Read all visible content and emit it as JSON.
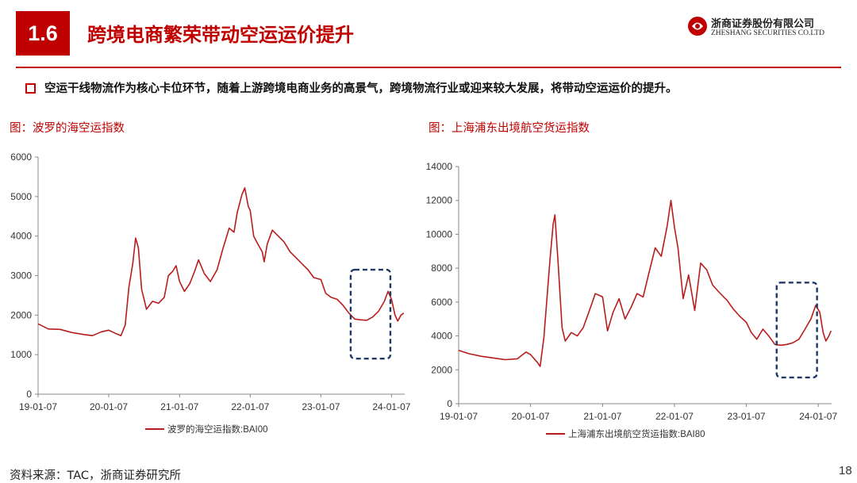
{
  "header": {
    "section_number": "1.6",
    "title": "跨境电商繁荣带动空运运价提升",
    "logo_cn": "浙商证券股份有限公司",
    "logo_en": "ZHESHANG SECURITIES CO.LTD"
  },
  "bullet": "空运干线物流作为核心卡位环节，随着上游跨境电商业务的高景气，跨境物流行业或迎来较大发展，将带动空运运价的提升。",
  "footer": {
    "source": "资料来源：TAC，浙商证券研究所",
    "page": "18"
  },
  "colors": {
    "accent": "#c00000",
    "line": "#b81c1c",
    "highlight_box": "#1f3864"
  },
  "chart_data": [
    {
      "type": "line",
      "title": "图：波罗的海空运指数",
      "legend": "波罗的海空运指数:BAI00",
      "legend_position": "bottom",
      "ylim": [
        0,
        6000
      ],
      "yticks": [
        0,
        1000,
        2000,
        3000,
        4000,
        5000,
        6000
      ],
      "xlim": [
        "2019-01-07",
        "2024-03-15"
      ],
      "xtick_labels": [
        "19-01-07",
        "20-01-07",
        "21-01-07",
        "22-01-07",
        "23-01-07",
        "24-01-07"
      ],
      "grid": false,
      "highlight_range": {
        "x": [
          "2023-06-10",
          "2024-01-01"
        ],
        "y": [
          900,
          3150
        ]
      },
      "points": [
        [
          "2019-01-07",
          1780
        ],
        [
          "2019-03-01",
          1650
        ],
        [
          "2019-05-01",
          1640
        ],
        [
          "2019-07-01",
          1560
        ],
        [
          "2019-09-01",
          1510
        ],
        [
          "2019-10-15",
          1480
        ],
        [
          "2019-12-01",
          1580
        ],
        [
          "2020-01-07",
          1620
        ],
        [
          "2020-02-15",
          1530
        ],
        [
          "2020-03-10",
          1480
        ],
        [
          "2020-04-01",
          1750
        ],
        [
          "2020-04-20",
          2700
        ],
        [
          "2020-05-10",
          3300
        ],
        [
          "2020-05-25",
          3950
        ],
        [
          "2020-06-08",
          3700
        ],
        [
          "2020-06-25",
          2650
        ],
        [
          "2020-07-20",
          2150
        ],
        [
          "2020-08-20",
          2350
        ],
        [
          "2020-09-20",
          2300
        ],
        [
          "2020-10-20",
          2450
        ],
        [
          "2020-11-10",
          3000
        ],
        [
          "2020-12-01",
          3100
        ],
        [
          "2020-12-20",
          3250
        ],
        [
          "2021-01-07",
          2850
        ],
        [
          "2021-02-01",
          2600
        ],
        [
          "2021-03-01",
          2800
        ],
        [
          "2021-03-25",
          3100
        ],
        [
          "2021-04-15",
          3400
        ],
        [
          "2021-05-15",
          3050
        ],
        [
          "2021-06-15",
          2850
        ],
        [
          "2021-07-20",
          3150
        ],
        [
          "2021-08-20",
          3700
        ],
        [
          "2021-09-20",
          4200
        ],
        [
          "2021-10-15",
          4100
        ],
        [
          "2021-11-01",
          4600
        ],
        [
          "2021-11-25",
          5050
        ],
        [
          "2021-12-10",
          5220
        ],
        [
          "2021-12-28",
          4750
        ],
        [
          "2022-01-07",
          4650
        ],
        [
          "2022-01-25",
          4000
        ],
        [
          "2022-02-15",
          3800
        ],
        [
          "2022-03-10",
          3600
        ],
        [
          "2022-03-20",
          3350
        ],
        [
          "2022-04-05",
          3800
        ],
        [
          "2022-05-01",
          4150
        ],
        [
          "2022-06-01",
          4000
        ],
        [
          "2022-07-01",
          3850
        ],
        [
          "2022-08-01",
          3600
        ],
        [
          "2022-09-01",
          3450
        ],
        [
          "2022-10-01",
          3300
        ],
        [
          "2022-11-01",
          3150
        ],
        [
          "2022-12-01",
          2950
        ],
        [
          "2023-01-07",
          2900
        ],
        [
          "2023-02-01",
          2550
        ],
        [
          "2023-03-01",
          2450
        ],
        [
          "2023-04-01",
          2400
        ],
        [
          "2023-05-01",
          2250
        ],
        [
          "2023-06-01",
          2050
        ],
        [
          "2023-07-01",
          1900
        ],
        [
          "2023-08-01",
          1880
        ],
        [
          "2023-09-01",
          1870
        ],
        [
          "2023-10-01",
          1950
        ],
        [
          "2023-11-01",
          2100
        ],
        [
          "2023-12-01",
          2350
        ],
        [
          "2023-12-20",
          2600
        ],
        [
          "2024-01-07",
          2400
        ],
        [
          "2024-01-25",
          2000
        ],
        [
          "2024-02-08",
          1850
        ],
        [
          "2024-02-25",
          2000
        ],
        [
          "2024-03-10",
          2050
        ]
      ]
    },
    {
      "type": "line",
      "title": "图：上海浦东出境航空货运指数",
      "legend": "上海浦东出境航空货运指数:BAI80",
      "legend_position": "bottom",
      "ylim": [
        0,
        14000
      ],
      "yticks": [
        0,
        2000,
        4000,
        6000,
        8000,
        10000,
        12000,
        14000
      ],
      "xlim": [
        "2019-01-07",
        "2024-03-15"
      ],
      "xtick_labels": [
        "19-01-07",
        "20-01-07",
        "21-01-07",
        "22-01-07",
        "23-01-07",
        "24-01-07"
      ],
      "grid": false,
      "highlight_range": {
        "x": [
          "2023-06-10",
          "2024-01-01"
        ],
        "y": [
          1550,
          7150
        ]
      },
      "points": [
        [
          "2019-01-07",
          3150
        ],
        [
          "2019-03-01",
          2950
        ],
        [
          "2019-05-01",
          2800
        ],
        [
          "2019-07-01",
          2700
        ],
        [
          "2019-09-01",
          2600
        ],
        [
          "2019-11-01",
          2650
        ],
        [
          "2019-12-15",
          3050
        ],
        [
          "2020-01-07",
          2900
        ],
        [
          "2020-02-10",
          2450
        ],
        [
          "2020-02-25",
          2200
        ],
        [
          "2020-03-15",
          3900
        ],
        [
          "2020-04-15",
          8500
        ],
        [
          "2020-05-01",
          10600
        ],
        [
          "2020-05-10",
          11150
        ],
        [
          "2020-05-25",
          8500
        ],
        [
          "2020-06-15",
          4500
        ],
        [
          "2020-07-01",
          3700
        ],
        [
          "2020-08-01",
          4200
        ],
        [
          "2020-09-01",
          4000
        ],
        [
          "2020-10-01",
          4500
        ],
        [
          "2020-11-01",
          5500
        ],
        [
          "2020-12-01",
          6500
        ],
        [
          "2021-01-07",
          6300
        ],
        [
          "2021-02-01",
          4300
        ],
        [
          "2021-03-01",
          5400
        ],
        [
          "2021-04-01",
          6200
        ],
        [
          "2021-05-01",
          5000
        ],
        [
          "2021-06-01",
          5700
        ],
        [
          "2021-07-01",
          6500
        ],
        [
          "2021-08-01",
          6300
        ],
        [
          "2021-09-01",
          7800
        ],
        [
          "2021-10-01",
          9200
        ],
        [
          "2021-11-01",
          8700
        ],
        [
          "2021-12-01",
          10500
        ],
        [
          "2021-12-20",
          12000
        ],
        [
          "2022-01-07",
          10400
        ],
        [
          "2022-01-25",
          9200
        ],
        [
          "2022-02-20",
          6200
        ],
        [
          "2022-03-20",
          7600
        ],
        [
          "2022-04-20",
          5500
        ],
        [
          "2022-05-20",
          8300
        ],
        [
          "2022-06-20",
          7900
        ],
        [
          "2022-07-20",
          7000
        ],
        [
          "2022-08-20",
          6600
        ],
        [
          "2022-10-01",
          6100
        ],
        [
          "2022-11-01",
          5600
        ],
        [
          "2022-12-01",
          5200
        ],
        [
          "2023-01-07",
          4800
        ],
        [
          "2023-02-01",
          4200
        ],
        [
          "2023-03-01",
          3800
        ],
        [
          "2023-04-01",
          4400
        ],
        [
          "2023-05-01",
          4000
        ],
        [
          "2023-06-01",
          3500
        ],
        [
          "2023-07-01",
          3450
        ],
        [
          "2023-08-01",
          3500
        ],
        [
          "2023-09-01",
          3600
        ],
        [
          "2023-10-01",
          3800
        ],
        [
          "2023-11-01",
          4400
        ],
        [
          "2023-12-01",
          5000
        ],
        [
          "2023-12-25",
          5800
        ],
        [
          "2024-01-15",
          5400
        ],
        [
          "2024-02-01",
          4200
        ],
        [
          "2024-02-15",
          3700
        ],
        [
          "2024-03-01",
          4000
        ],
        [
          "2024-03-12",
          4300
        ]
      ]
    }
  ]
}
